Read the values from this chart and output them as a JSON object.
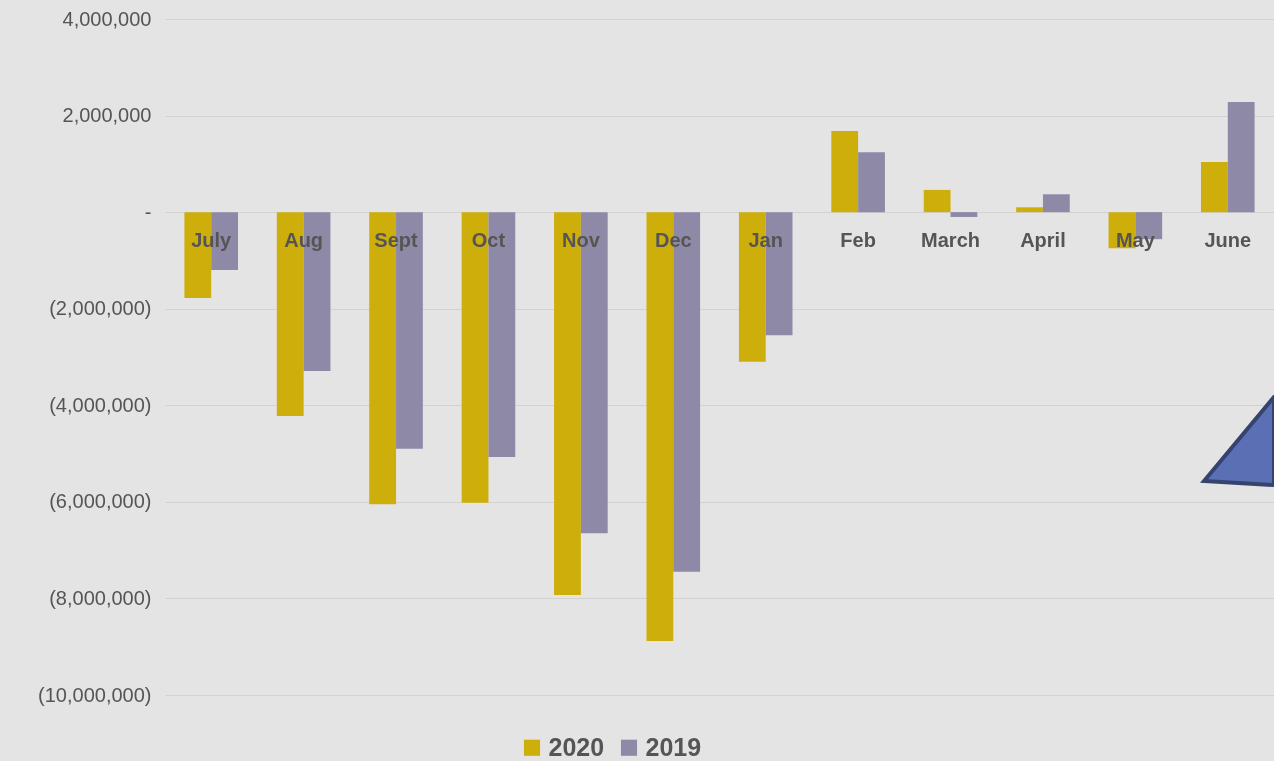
{
  "chart_data": {
    "type": "bar",
    "categories": [
      "July",
      "Aug",
      "Sept",
      "Oct",
      "Nov",
      "Dec",
      "Jan",
      "Feb",
      "March",
      "April",
      "May",
      "June"
    ],
    "series": [
      {
        "name": "2020",
        "color": "#cdae0b",
        "values": [
          -1780000,
          -4220000,
          -6050000,
          -6020000,
          -7930000,
          -8880000,
          -3100000,
          1680000,
          460000,
          100000,
          -750000,
          1040000
        ]
      },
      {
        "name": "2019",
        "color": "#8e89a7",
        "values": [
          -1200000,
          -3290000,
          -4900000,
          -5070000,
          -6650000,
          -7450000,
          -2550000,
          1240000,
          -100000,
          370000,
          -560000,
          2280000
        ]
      }
    ],
    "ylim": [
      -10000000,
      4000000
    ],
    "yticks": [
      {
        "value": -10000000,
        "label": "(10,000,000)"
      },
      {
        "value": -8000000,
        "label": "(8,000,000)"
      },
      {
        "value": -6000000,
        "label": "(6,000,000)"
      },
      {
        "value": -4000000,
        "label": "(4,000,000)"
      },
      {
        "value": -2000000,
        "label": "(2,000,000)"
      },
      {
        "value": 0,
        "label": "-"
      },
      {
        "value": 2000000,
        "label": "2,000,000"
      },
      {
        "value": 4000000,
        "label": "4,000,000"
      }
    ],
    "grid": "y",
    "legend": "bottom"
  }
}
